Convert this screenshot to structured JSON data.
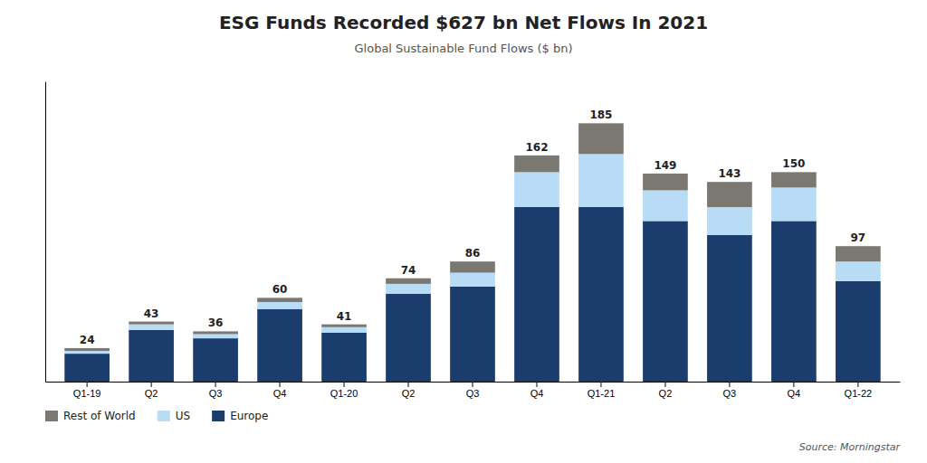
{
  "chart_data": {
    "type": "bar",
    "stacked": true,
    "title": "ESG Funds Recorded $627 bn Net Flows In 2021",
    "subtitle": "Global Sustainable Fund Flows ($ bn)",
    "annotations": [
      "Source: Morningstar"
    ],
    "categories": [
      "Q1-19",
      "Q2",
      "Q3",
      "Q4",
      "Q1-20",
      "Q2",
      "Q3",
      "Q4",
      "Q1-21",
      "Q2",
      "Q3",
      "Q4",
      "Q1-22"
    ],
    "series": [
      {
        "name": "Europe",
        "color": "#1b3d6e",
        "values": [
          20,
          37,
          31,
          52,
          35,
          63,
          68,
          125,
          125,
          115,
          105,
          115,
          72
        ]
      },
      {
        "name": "US",
        "color": "#b8dcf5",
        "values": [
          2,
          4,
          3,
          5,
          4,
          7,
          10,
          25,
          38,
          22,
          20,
          24,
          14
        ]
      },
      {
        "name": "Rest of World",
        "color": "#7a7870",
        "values": [
          2,
          2,
          2,
          3,
          2,
          4,
          8,
          12,
          22,
          12,
          18,
          11,
          11
        ]
      }
    ],
    "totals": [
      24,
      43,
      36,
      60,
      41,
      74,
      86,
      162,
      185,
      149,
      143,
      150,
      97
    ],
    "ylim": [
      0,
      215
    ],
    "yticks": [],
    "tick_labels": "x",
    "grid": false,
    "legend": "bottom"
  }
}
